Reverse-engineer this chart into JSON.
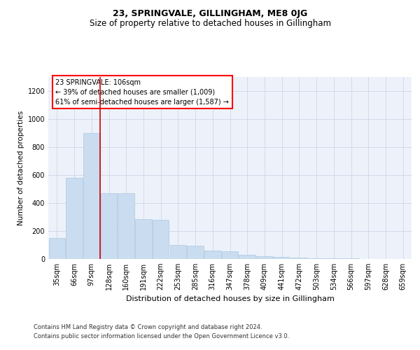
{
  "title": "23, SPRINGVALE, GILLINGHAM, ME8 0JG",
  "subtitle": "Size of property relative to detached houses in Gillingham",
  "xlabel": "Distribution of detached houses by size in Gillingham",
  "ylabel": "Number of detached properties",
  "footer_line1": "Contains HM Land Registry data © Crown copyright and database right 2024.",
  "footer_line2": "Contains public sector information licensed under the Open Government Licence v3.0.",
  "annotation_line1": "23 SPRINGVALE: 106sqm",
  "annotation_line2": "← 39% of detached houses are smaller (1,009)",
  "annotation_line3": "61% of semi-detached houses are larger (1,587) →",
  "bar_color": "#c9dcf0",
  "bar_edge_color": "#b0c8e0",
  "red_line_color": "#cc0000",
  "background_color": "#ffffff",
  "plot_bg_color": "#edf2fa",
  "grid_color": "#cdd5e8",
  "categories": [
    "35sqm",
    "66sqm",
    "97sqm",
    "128sqm",
    "160sqm",
    "191sqm",
    "222sqm",
    "253sqm",
    "285sqm",
    "316sqm",
    "347sqm",
    "378sqm",
    "409sqm",
    "441sqm",
    "472sqm",
    "503sqm",
    "534sqm",
    "566sqm",
    "597sqm",
    "628sqm",
    "659sqm"
  ],
  "values": [
    152,
    580,
    900,
    470,
    470,
    285,
    280,
    100,
    95,
    58,
    55,
    28,
    22,
    16,
    10,
    7,
    5,
    3,
    2,
    1,
    0
  ],
  "red_line_x": 2.5,
  "ylim": [
    0,
    1300
  ],
  "yticks": [
    0,
    200,
    400,
    600,
    800,
    1000,
    1200
  ],
  "title_fontsize": 9,
  "subtitle_fontsize": 8.5,
  "xlabel_fontsize": 8,
  "ylabel_fontsize": 7.5,
  "tick_fontsize": 7,
  "annotation_fontsize": 7,
  "footer_fontsize": 6
}
